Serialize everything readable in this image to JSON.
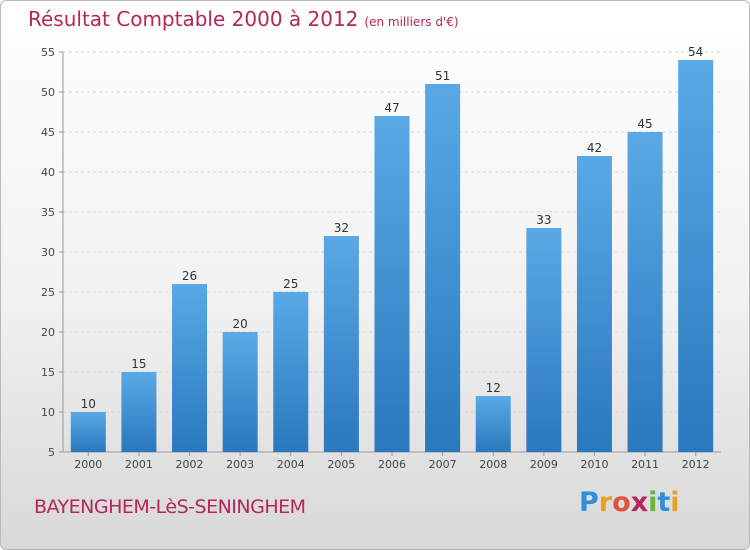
{
  "chart_data": {
    "type": "bar",
    "title": "Résultat Comptable 2000 à 2012",
    "subtitle": "(en milliers d'€)",
    "categories": [
      "2000",
      "2001",
      "2002",
      "2003",
      "2004",
      "2005",
      "2006",
      "2007",
      "2008",
      "2009",
      "2010",
      "2011",
      "2012"
    ],
    "values": [
      10,
      15,
      26,
      20,
      25,
      32,
      47,
      51,
      12,
      33,
      42,
      45,
      54
    ],
    "ylim": [
      5,
      55
    ],
    "yticks": [
      5,
      10,
      15,
      20,
      25,
      30,
      35,
      40,
      45,
      50,
      55
    ],
    "grid": true,
    "bar_color": "#3a8fd6",
    "title_color": "#b5265a"
  },
  "footer": {
    "place": "BAYENGHEM-LèS-SENINGHEM",
    "brand": "Proxiti"
  }
}
